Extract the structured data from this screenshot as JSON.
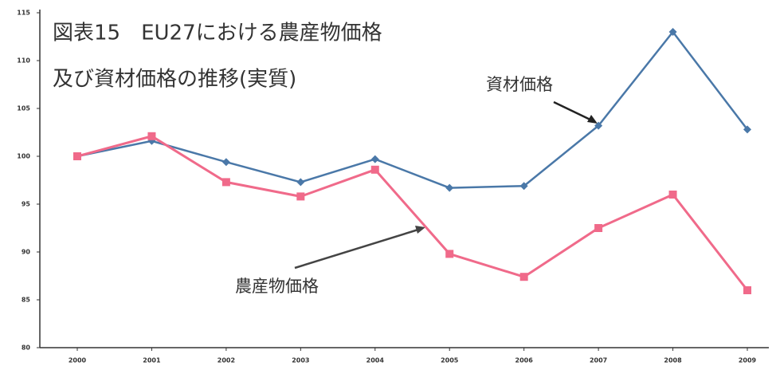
{
  "chart_data": {
    "type": "line",
    "title": "図表15　EU27における農産物価格",
    "subtitle": "及び資材価格の推移(実質)",
    "categories": [
      "2000",
      "2001",
      "2002",
      "2003",
      "2004",
      "2005",
      "2006",
      "2007",
      "2008",
      "2009"
    ],
    "series": [
      {
        "name": "資材価格",
        "color": "#4a78a8",
        "values": [
          100,
          101.6,
          99.4,
          97.3,
          99.7,
          96.7,
          96.9,
          103.2,
          113,
          102.8
        ]
      },
      {
        "name": "農産物価格",
        "color": "#f06a8a",
        "values": [
          100,
          102.1,
          97.3,
          95.8,
          98.6,
          89.8,
          87.4,
          92.5,
          96,
          86
        ]
      }
    ],
    "ylim": [
      80,
      115
    ],
    "yticks": [
      80,
      85,
      90,
      95,
      100,
      105,
      110,
      115
    ],
    "grid": false
  }
}
